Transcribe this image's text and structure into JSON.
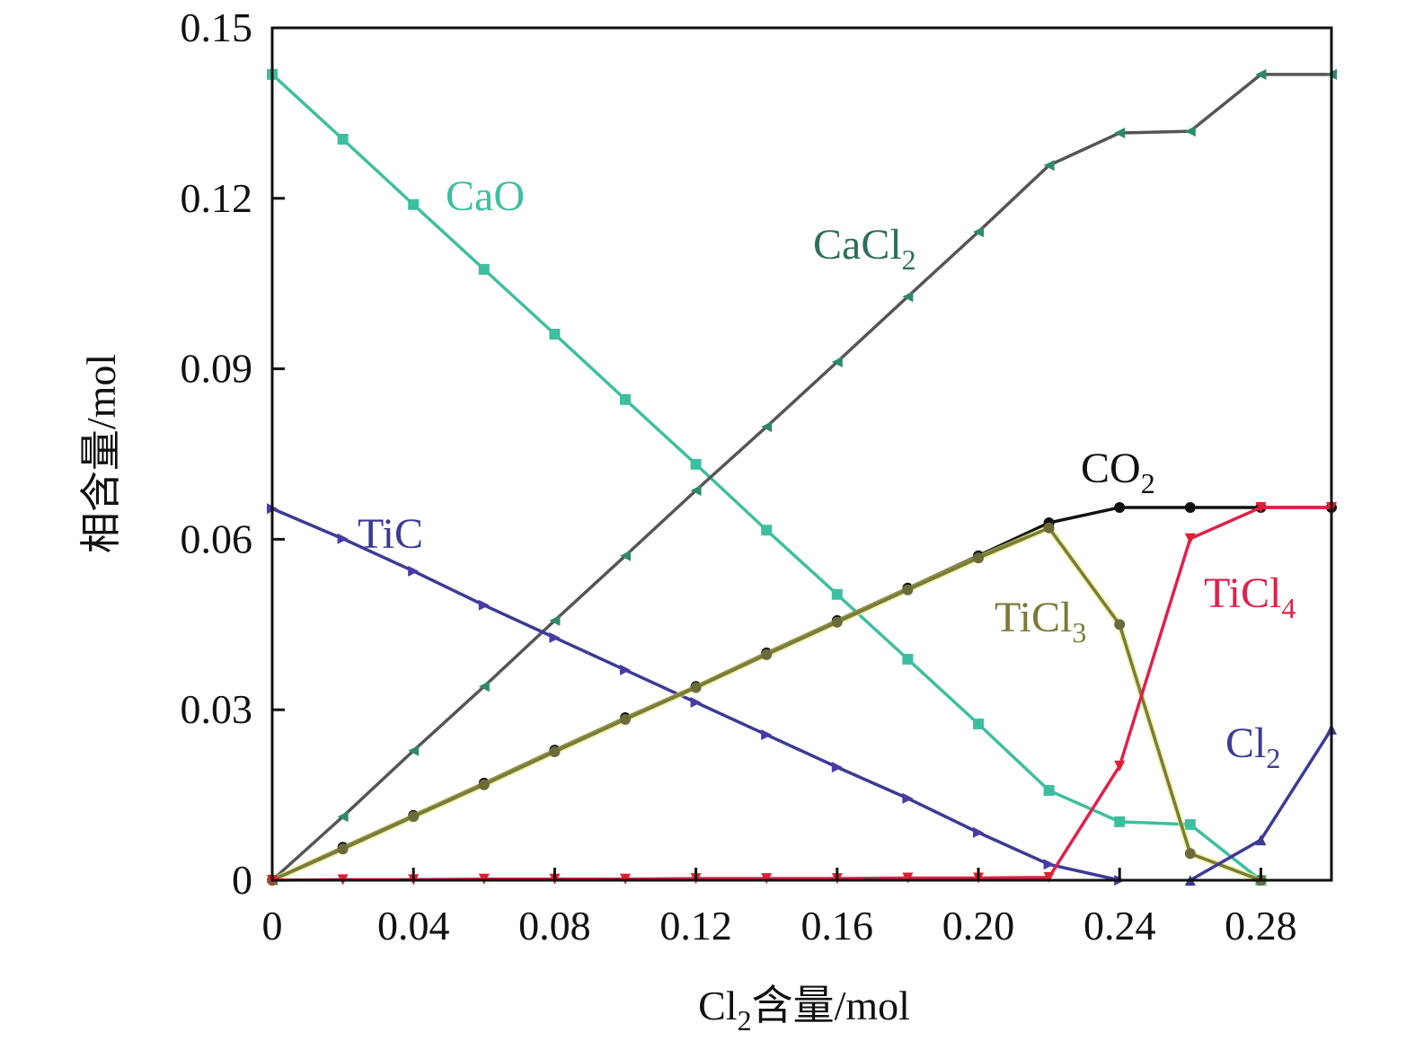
{
  "chart_data": {
    "type": "line",
    "title": "",
    "xlabel": {
      "base": "Cl",
      "sub": "2",
      "rest": "含量/mol"
    },
    "ylabel": "相含量/mol",
    "xlim": [
      0,
      0.3
    ],
    "ylim": [
      0,
      0.15
    ],
    "xticks": [
      0,
      0.04,
      0.08,
      0.12,
      0.16,
      0.2,
      0.24,
      0.28
    ],
    "xtick_labels": [
      "0",
      "0.04",
      "0.08",
      "0.12",
      "0.16",
      "0.20",
      "0.24",
      "0.28"
    ],
    "yticks": [
      0,
      0.03,
      0.06,
      0.09,
      0.12,
      0.15
    ],
    "ytick_labels": [
      "0",
      "0.03",
      "0.06",
      "0.09",
      "0.12",
      "0.15"
    ],
    "grid": false,
    "legend": "inline labels",
    "series": [
      {
        "name": "CaO",
        "label_base": "CaO",
        "label_sub": "",
        "color": "#3dbf9f",
        "marker_color": "#3dbf9f",
        "marker": "square",
        "x": [
          0,
          0.02,
          0.04,
          0.06,
          0.08,
          0.1,
          0.12,
          0.14,
          0.16,
          0.18,
          0.2,
          0.22,
          0.24,
          0.26,
          0.28
        ],
        "y": [
          0.1418,
          0.1304,
          0.1189,
          0.1075,
          0.0961,
          0.0846,
          0.0732,
          0.0616,
          0.0503,
          0.0389,
          0.0275,
          0.0158,
          0.0103,
          0.0098,
          0
        ]
      },
      {
        "name": "CaCl2",
        "label_base": "CaCl",
        "label_sub": "2",
        "color": "#555555",
        "marker_color": "#2e8a6a",
        "marker": "triangle-left",
        "x": [
          0,
          0.02,
          0.04,
          0.06,
          0.08,
          0.1,
          0.12,
          0.14,
          0.16,
          0.18,
          0.2,
          0.22,
          0.24,
          0.26,
          0.28,
          0.3
        ],
        "y": [
          0,
          0.0112,
          0.0228,
          0.0341,
          0.0457,
          0.0571,
          0.0686,
          0.0798,
          0.0912,
          0.1027,
          0.1141,
          0.1258,
          0.1315,
          0.1318,
          0.1418,
          0.1418
        ]
      },
      {
        "name": "TiC",
        "label_base": "TiC",
        "label_sub": "",
        "color": "#3b3b95",
        "marker_color": "#4a3aa8",
        "marker": "triangle-right",
        "x": [
          0,
          0.02,
          0.04,
          0.06,
          0.08,
          0.1,
          0.12,
          0.14,
          0.16,
          0.18,
          0.2,
          0.22,
          0.24
        ],
        "y": [
          0.0654,
          0.0601,
          0.0544,
          0.0484,
          0.0427,
          0.037,
          0.0313,
          0.0256,
          0.0199,
          0.0144,
          0.0084,
          0.0028,
          0
        ]
      },
      {
        "name": "CO2",
        "label_base": "CO",
        "label_sub": "2",
        "color": "#111111",
        "marker_color": "#111111",
        "marker": "circle",
        "x": [
          0,
          0.02,
          0.04,
          0.06,
          0.08,
          0.1,
          0.12,
          0.14,
          0.16,
          0.18,
          0.2,
          0.22,
          0.24,
          0.26,
          0.28,
          0.3
        ],
        "y": [
          0,
          0.0058,
          0.0114,
          0.0171,
          0.0229,
          0.0286,
          0.0341,
          0.04,
          0.0457,
          0.0514,
          0.0571,
          0.0629,
          0.0656,
          0.0656,
          0.0656,
          0.0656
        ]
      },
      {
        "name": "TiCl3",
        "label_base": "TiCl",
        "label_sub": "3",
        "color": "#7a7a3a",
        "marker_color": "#6b6b3a",
        "marker": "circle",
        "x": [
          0,
          0.02,
          0.04,
          0.06,
          0.08,
          0.1,
          0.12,
          0.14,
          0.16,
          0.18,
          0.2,
          0.22,
          0.24,
          0.26,
          0.28
        ],
        "y": [
          0,
          0.0055,
          0.0112,
          0.0168,
          0.0226,
          0.0283,
          0.0339,
          0.0397,
          0.0454,
          0.0511,
          0.0567,
          0.062,
          0.045,
          0.0047,
          0
        ]
      },
      {
        "name": "TiCl4",
        "label_base": "TiCl",
        "label_sub": "4",
        "color": "#e0204a",
        "marker_color": "#e01f30",
        "marker": "triangle-down",
        "x": [
          0,
          0.02,
          0.04,
          0.06,
          0.08,
          0.1,
          0.12,
          0.14,
          0.16,
          0.18,
          0.2,
          0.22,
          0.24,
          0.26,
          0.28,
          0.3
        ],
        "y": [
          0,
          0.0001,
          0.0001,
          0.0002,
          0.0002,
          0.0002,
          0.0003,
          0.0003,
          0.0003,
          0.0004,
          0.0004,
          0.0005,
          0.0201,
          0.0601,
          0.0656,
          0.0656
        ]
      },
      {
        "name": "Cl2",
        "label_base": "Cl",
        "label_sub": "2",
        "color": "#3b3b95",
        "marker_color": "#3b3b95",
        "marker": "triangle-up",
        "x": [
          0.26,
          0.28,
          0.3
        ],
        "y": [
          0,
          0.0071,
          0.0266
        ]
      }
    ]
  }
}
